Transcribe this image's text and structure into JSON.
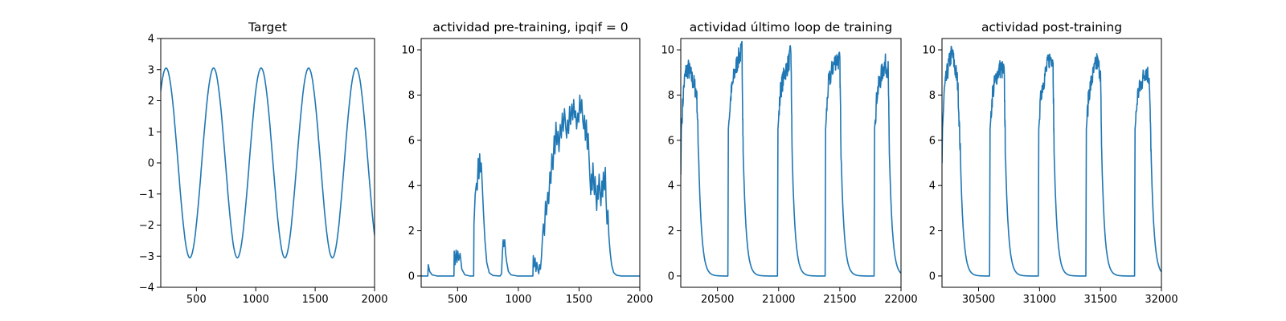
{
  "colors": {
    "series": "#1f77b4",
    "axes": "#000000",
    "background": "#ffffff"
  },
  "chart_data": [
    {
      "type": "line",
      "title": "Target",
      "xlabel": "",
      "ylabel": "",
      "xlim": [
        200,
        2000
      ],
      "ylim": [
        -4,
        4
      ],
      "xticks": [
        500,
        1000,
        1500,
        2000
      ],
      "yticks": [
        -4,
        -3,
        -2,
        -1,
        0,
        1,
        2,
        3,
        4
      ],
      "grid": false,
      "generator": {
        "kind": "sine",
        "amplitude": 3.05,
        "period": 400,
        "peak_x": 245,
        "x_start": 200,
        "x_end": 2000
      },
      "points": [
        [
          200,
          2.28
        ],
        [
          245,
          3.05
        ],
        [
          445,
          -3.05
        ],
        [
          645,
          3.05
        ],
        [
          845,
          -3.05
        ],
        [
          1045,
          3.05
        ],
        [
          1245,
          -3.05
        ],
        [
          1445,
          3.05
        ],
        [
          1645,
          -3.05
        ],
        [
          1845,
          3.05
        ],
        [
          2000,
          -2.2
        ]
      ]
    },
    {
      "type": "line",
      "title": "actividad pre-training, ipqif = 0",
      "xlabel": "",
      "ylabel": "",
      "xlim": [
        200,
        2000
      ],
      "ylim": [
        -0.5,
        10.5
      ],
      "xticks": [
        500,
        1000,
        1500,
        2000
      ],
      "yticks": [
        0,
        2,
        4,
        6,
        8,
        10
      ],
      "grid": false,
      "points": [
        [
          200,
          0
        ],
        [
          255,
          0
        ],
        [
          258,
          0.5
        ],
        [
          270,
          0.2
        ],
        [
          290,
          0.05
        ],
        [
          330,
          0
        ],
        [
          470,
          0
        ],
        [
          472,
          1.1
        ],
        [
          480,
          0.5
        ],
        [
          488,
          1.15
        ],
        [
          495,
          0.6
        ],
        [
          502,
          1.1
        ],
        [
          510,
          0.7
        ],
        [
          520,
          1.0
        ],
        [
          535,
          0.3
        ],
        [
          560,
          0.05
        ],
        [
          600,
          0
        ],
        [
          632,
          0
        ],
        [
          635,
          2.3
        ],
        [
          645,
          3.6
        ],
        [
          655,
          4.1
        ],
        [
          662,
          3.8
        ],
        [
          670,
          5.2
        ],
        [
          676,
          4.3
        ],
        [
          682,
          5.4
        ],
        [
          688,
          4.6
        ],
        [
          695,
          5.0
        ],
        [
          702,
          4.1
        ],
        [
          712,
          2.9
        ],
        [
          725,
          1.6
        ],
        [
          740,
          0.6
        ],
        [
          760,
          0.15
        ],
        [
          790,
          0.02
        ],
        [
          850,
          0
        ],
        [
          862,
          0.1
        ],
        [
          868,
          0.9
        ],
        [
          875,
          1.6
        ],
        [
          881,
          1.3
        ],
        [
          888,
          1.6
        ],
        [
          895,
          1.0
        ],
        [
          905,
          0.6
        ],
        [
          918,
          0.2
        ],
        [
          940,
          0.05
        ],
        [
          990,
          0
        ],
        [
          1120,
          0
        ],
        [
          1123,
          0.9
        ],
        [
          1130,
          0.4
        ],
        [
          1138,
          0.8
        ],
        [
          1145,
          0.2
        ],
        [
          1152,
          0.6
        ],
        [
          1160,
          0.3
        ],
        [
          1168,
          0.1
        ],
        [
          1175,
          0.5
        ],
        [
          1182,
          0.3
        ],
        [
          1190,
          0.8
        ],
        [
          1198,
          1.6
        ],
        [
          1206,
          2.3
        ],
        [
          1215,
          1.8
        ],
        [
          1224,
          3.3
        ],
        [
          1232,
          2.7
        ],
        [
          1242,
          3.7
        ],
        [
          1250,
          3.2
        ],
        [
          1260,
          4.6
        ],
        [
          1268,
          4.1
        ],
        [
          1276,
          5.4
        ],
        [
          1285,
          4.7
        ],
        [
          1295,
          6.2
        ],
        [
          1302,
          5.4
        ],
        [
          1310,
          6.8
        ],
        [
          1318,
          5.8
        ],
        [
          1326,
          6.4
        ],
        [
          1335,
          5.5
        ],
        [
          1345,
          6.7
        ],
        [
          1354,
          6.1
        ],
        [
          1362,
          7.2
        ],
        [
          1370,
          6.4
        ],
        [
          1380,
          7.4
        ],
        [
          1390,
          6.6
        ],
        [
          1398,
          6.1
        ],
        [
          1406,
          6.9
        ],
        [
          1414,
          6.3
        ],
        [
          1422,
          7.5
        ],
        [
          1430,
          6.7
        ],
        [
          1440,
          7.6
        ],
        [
          1448,
          6.9
        ],
        [
          1456,
          7.8
        ],
        [
          1464,
          7.0
        ],
        [
          1472,
          7.3
        ],
        [
          1480,
          6.5
        ],
        [
          1490,
          7.2
        ],
        [
          1498,
          6.8
        ],
        [
          1506,
          8.0
        ],
        [
          1514,
          7.2
        ],
        [
          1522,
          7.8
        ],
        [
          1530,
          6.9
        ],
        [
          1538,
          6.5
        ],
        [
          1545,
          7.1
        ],
        [
          1552,
          6.0
        ],
        [
          1560,
          6.9
        ],
        [
          1568,
          5.6
        ],
        [
          1575,
          6.3
        ],
        [
          1582,
          5.3
        ],
        [
          1590,
          4.3
        ],
        [
          1596,
          3.6
        ],
        [
          1602,
          4.5
        ],
        [
          1608,
          3.8
        ],
        [
          1614,
          5.0
        ],
        [
          1620,
          4.2
        ],
        [
          1626,
          3.6
        ],
        [
          1632,
          4.4
        ],
        [
          1638,
          3.7
        ],
        [
          1645,
          2.9
        ],
        [
          1652,
          4.0
        ],
        [
          1658,
          3.4
        ],
        [
          1665,
          4.5
        ],
        [
          1672,
          3.8
        ],
        [
          1680,
          3.1
        ],
        [
          1688,
          4.2
        ],
        [
          1694,
          3.5
        ],
        [
          1700,
          4.6
        ],
        [
          1708,
          3.8
        ],
        [
          1716,
          4.8
        ],
        [
          1722,
          3.4
        ],
        [
          1730,
          2.3
        ],
        [
          1738,
          2.9
        ],
        [
          1745,
          1.8
        ],
        [
          1755,
          1.1
        ],
        [
          1768,
          0.5
        ],
        [
          1785,
          0.15
        ],
        [
          1810,
          0.03
        ],
        [
          1850,
          0
        ],
        [
          2000,
          0
        ]
      ]
    },
    {
      "type": "line",
      "title": "actividad último loop de training",
      "xlabel": "",
      "ylabel": "",
      "xlim": [
        20200,
        22000
      ],
      "ylim": [
        -0.5,
        10.5
      ],
      "xticks": [
        20500,
        21000,
        21500,
        22000
      ],
      "yticks": [
        0,
        2,
        4,
        6,
        8,
        10
      ],
      "grid": false,
      "generator": {
        "kind": "pulses",
        "baseline": 0,
        "rise_to_knee": 6.5,
        "decay_tau": 25
      },
      "pulses": [
        {
          "start": 20200,
          "start_level": 4.5,
          "plateau": [
            [
              20225,
              8.4
            ],
            [
              20240,
              9.0
            ],
            [
              20260,
              9.2
            ],
            [
              20280,
              8.9
            ],
            [
              20300,
              8.6
            ],
            [
              20330,
              8.1
            ]
          ],
          "end": 20345
        },
        {
          "start": 20585,
          "plateau": [
            [
              20610,
              8.0
            ],
            [
              20640,
              9.0
            ],
            [
              20670,
              9.6
            ],
            [
              20700,
              10.0
            ]
          ],
          "end": 20710
        },
        {
          "start": 20990,
          "plateau": [
            [
              21015,
              8.2
            ],
            [
              21050,
              9.0
            ],
            [
              21080,
              9.4
            ],
            [
              21100,
              9.9
            ]
          ],
          "end": 21110
        },
        {
          "start": 21380,
          "plateau": [
            [
              21405,
              8.4
            ],
            [
              21440,
              9.2
            ],
            [
              21470,
              9.6
            ],
            [
              21500,
              9.5
            ]
          ],
          "end": 21510
        },
        {
          "start": 21780,
          "plateau": [
            [
              21805,
              8.1
            ],
            [
              21840,
              8.9
            ],
            [
              21870,
              9.4
            ],
            [
              21895,
              9.1
            ]
          ],
          "end": 21905
        }
      ]
    },
    {
      "type": "line",
      "title": "actividad post-training",
      "xlabel": "",
      "ylabel": "",
      "xlim": [
        30200,
        32000
      ],
      "ylim": [
        -0.5,
        10.5
      ],
      "xticks": [
        30500,
        31000,
        31500,
        32000
      ],
      "yticks": [
        0,
        2,
        4,
        6,
        8,
        10
      ],
      "grid": false,
      "generator": {
        "kind": "pulses",
        "baseline": 0,
        "rise_to_knee": 6.5,
        "decay_tau": 25
      },
      "pulses": [
        {
          "start": 30200,
          "start_level": 5.0,
          "plateau": [
            [
              30220,
              8.2
            ],
            [
              30250,
              9.2
            ],
            [
              30280,
              9.9
            ],
            [
              30300,
              9.4
            ],
            [
              30330,
              8.5
            ]
          ],
          "end": 30350
        },
        {
          "start": 30590,
          "plateau": [
            [
              30615,
              8.1
            ],
            [
              30650,
              8.9
            ],
            [
              30680,
              9.2
            ],
            [
              30710,
              9.0
            ]
          ],
          "end": 30720
        },
        {
          "start": 30990,
          "plateau": [
            [
              31015,
              8.2
            ],
            [
              31050,
              9.0
            ],
            [
              31080,
              9.6
            ],
            [
              31110,
              9.7
            ]
          ],
          "end": 31120
        },
        {
          "start": 31380,
          "plateau": [
            [
              31405,
              8.1
            ],
            [
              31440,
              8.9
            ],
            [
              31470,
              9.5
            ],
            [
              31500,
              9.0
            ]
          ],
          "end": 31510
        },
        {
          "start": 31780,
          "plateau": [
            [
              31805,
              8.0
            ],
            [
              31840,
              8.6
            ],
            [
              31870,
              9.1
            ],
            [
              31900,
              8.8
            ]
          ],
          "end": 31915
        }
      ]
    }
  ]
}
